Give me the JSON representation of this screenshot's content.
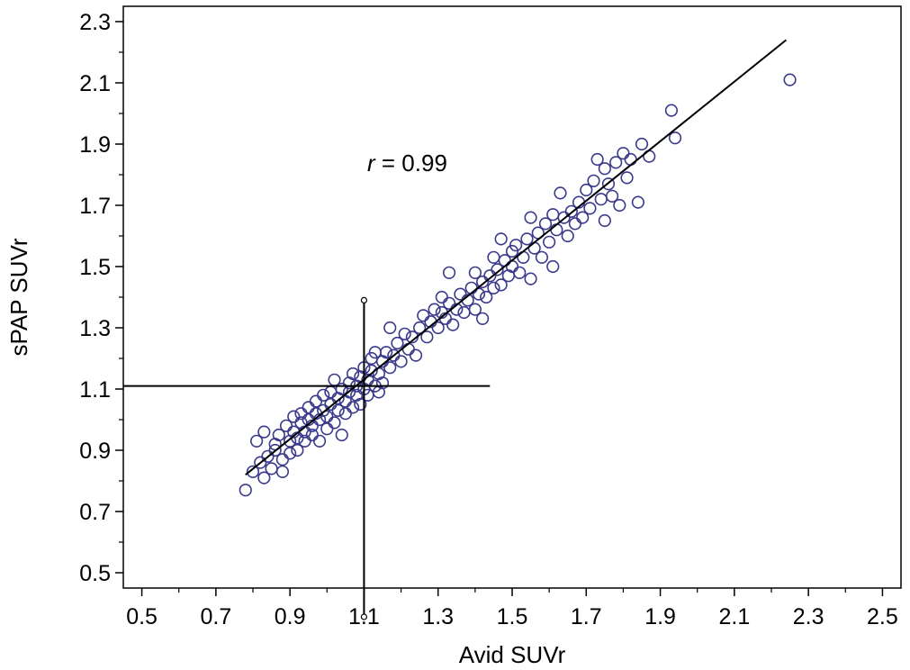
{
  "chart_data": {
    "type": "scatter",
    "title": "",
    "xlabel": "Avid SUVr",
    "ylabel": "sPAP SUVr",
    "xlim": [
      0.45,
      2.55
    ],
    "ylim": [
      0.45,
      2.35
    ],
    "xticks": [
      "0.5",
      "0.7",
      "0.9",
      "1.1",
      "1.3",
      "1.5",
      "1.7",
      "1.9",
      "2.1",
      "2.3",
      "2.5"
    ],
    "yticks": [
      "0.5",
      "0.7",
      "0.9",
      "1.1",
      "1.3",
      "1.5",
      "1.7",
      "1.9",
      "2.1",
      "2.3"
    ],
    "grid": false,
    "annotation": {
      "italic": "r",
      "text": " = 0.99",
      "x": 1.1,
      "y": 1.84
    },
    "regression_line": {
      "x": [
        0.78,
        2.24
      ],
      "y": [
        0.82,
        2.24
      ]
    },
    "crosshair": {
      "x": 1.1,
      "y": 1.11,
      "x_end": 1.44,
      "y_top": 1.39
    },
    "points": [
      [
        0.78,
        0.77
      ],
      [
        0.8,
        0.83
      ],
      [
        0.81,
        0.93
      ],
      [
        0.82,
        0.86
      ],
      [
        0.83,
        0.81
      ],
      [
        0.83,
        0.96
      ],
      [
        0.84,
        0.88
      ],
      [
        0.85,
        0.84
      ],
      [
        0.86,
        0.92
      ],
      [
        0.86,
        0.9
      ],
      [
        0.87,
        0.95
      ],
      [
        0.88,
        0.87
      ],
      [
        0.88,
        0.83
      ],
      [
        0.89,
        0.98
      ],
      [
        0.9,
        0.89
      ],
      [
        0.9,
        0.93
      ],
      [
        0.91,
        0.96
      ],
      [
        0.91,
        1.01
      ],
      [
        0.92,
        0.9
      ],
      [
        0.92,
        0.94
      ],
      [
        0.93,
        0.99
      ],
      [
        0.93,
        1.02
      ],
      [
        0.94,
        0.93
      ],
      [
        0.94,
        0.96
      ],
      [
        0.95,
        1.0
      ],
      [
        0.95,
        1.04
      ],
      [
        0.96,
        0.95
      ],
      [
        0.96,
        0.98
      ],
      [
        0.97,
        1.02
      ],
      [
        0.97,
        1.06
      ],
      [
        0.98,
        0.93
      ],
      [
        0.98,
        1.0
      ],
      [
        0.99,
        1.03
      ],
      [
        0.99,
        1.08
      ],
      [
        1.0,
        0.97
      ],
      [
        1.0,
        1.01
      ],
      [
        1.01,
        1.05
      ],
      [
        1.01,
        1.09
      ],
      [
        1.02,
        0.99
      ],
      [
        1.02,
        1.13
      ],
      [
        1.03,
        1.03
      ],
      [
        1.03,
        1.07
      ],
      [
        1.04,
        0.95
      ],
      [
        1.04,
        1.1
      ],
      [
        1.05,
        1.02
      ],
      [
        1.05,
        1.06
      ],
      [
        1.06,
        1.09
      ],
      [
        1.06,
        1.12
      ],
      [
        1.07,
        1.04
      ],
      [
        1.07,
        1.15
      ],
      [
        1.08,
        1.08
      ],
      [
        1.08,
        1.11
      ],
      [
        1.09,
        1.14
      ],
      [
        1.09,
        1.05
      ],
      [
        1.1,
        1.1
      ],
      [
        1.1,
        1.17
      ],
      [
        1.11,
        1.13
      ],
      [
        1.11,
        1.08
      ],
      [
        1.12,
        1.16
      ],
      [
        1.12,
        1.2
      ],
      [
        1.13,
        1.11
      ],
      [
        1.13,
        1.22
      ],
      [
        1.14,
        1.15
      ],
      [
        1.14,
        1.09
      ],
      [
        1.15,
        1.19
      ],
      [
        1.15,
        1.12
      ],
      [
        1.16,
        1.22
      ],
      [
        1.17,
        1.17
      ],
      [
        1.17,
        1.3
      ],
      [
        1.18,
        1.21
      ],
      [
        1.19,
        1.25
      ],
      [
        1.2,
        1.19
      ],
      [
        1.21,
        1.28
      ],
      [
        1.22,
        1.23
      ],
      [
        1.23,
        1.27
      ],
      [
        1.24,
        1.21
      ],
      [
        1.25,
        1.3
      ],
      [
        1.26,
        1.34
      ],
      [
        1.27,
        1.27
      ],
      [
        1.28,
        1.32
      ],
      [
        1.29,
        1.36
      ],
      [
        1.3,
        1.3
      ],
      [
        1.31,
        1.35
      ],
      [
        1.31,
        1.4
      ],
      [
        1.32,
        1.33
      ],
      [
        1.33,
        1.38
      ],
      [
        1.33,
        1.48
      ],
      [
        1.34,
        1.31
      ],
      [
        1.35,
        1.36
      ],
      [
        1.36,
        1.41
      ],
      [
        1.37,
        1.35
      ],
      [
        1.38,
        1.39
      ],
      [
        1.39,
        1.43
      ],
      [
        1.4,
        1.36
      ],
      [
        1.4,
        1.48
      ],
      [
        1.41,
        1.41
      ],
      [
        1.42,
        1.33
      ],
      [
        1.42,
        1.45
      ],
      [
        1.43,
        1.4
      ],
      [
        1.44,
        1.47
      ],
      [
        1.45,
        1.43
      ],
      [
        1.45,
        1.53
      ],
      [
        1.46,
        1.49
      ],
      [
        1.47,
        1.44
      ],
      [
        1.47,
        1.59
      ],
      [
        1.48,
        1.52
      ],
      [
        1.49,
        1.47
      ],
      [
        1.5,
        1.55
      ],
      [
        1.5,
        1.5
      ],
      [
        1.51,
        1.57
      ],
      [
        1.52,
        1.48
      ],
      [
        1.53,
        1.53
      ],
      [
        1.54,
        1.59
      ],
      [
        1.55,
        1.46
      ],
      [
        1.55,
        1.66
      ],
      [
        1.56,
        1.56
      ],
      [
        1.57,
        1.61
      ],
      [
        1.58,
        1.53
      ],
      [
        1.59,
        1.64
      ],
      [
        1.6,
        1.58
      ],
      [
        1.61,
        1.5
      ],
      [
        1.61,
        1.67
      ],
      [
        1.62,
        1.62
      ],
      [
        1.63,
        1.74
      ],
      [
        1.64,
        1.66
      ],
      [
        1.65,
        1.6
      ],
      [
        1.66,
        1.68
      ],
      [
        1.67,
        1.64
      ],
      [
        1.68,
        1.71
      ],
      [
        1.69,
        1.66
      ],
      [
        1.7,
        1.75
      ],
      [
        1.71,
        1.69
      ],
      [
        1.72,
        1.78
      ],
      [
        1.73,
        1.85
      ],
      [
        1.74,
        1.72
      ],
      [
        1.75,
        1.65
      ],
      [
        1.75,
        1.82
      ],
      [
        1.76,
        1.77
      ],
      [
        1.77,
        1.73
      ],
      [
        1.78,
        1.84
      ],
      [
        1.79,
        1.7
      ],
      [
        1.8,
        1.87
      ],
      [
        1.81,
        1.79
      ],
      [
        1.82,
        1.85
      ],
      [
        1.84,
        1.71
      ],
      [
        1.85,
        1.9
      ],
      [
        1.87,
        1.86
      ],
      [
        1.93,
        2.01
      ],
      [
        1.94,
        1.92
      ],
      [
        2.25,
        2.11
      ]
    ]
  }
}
